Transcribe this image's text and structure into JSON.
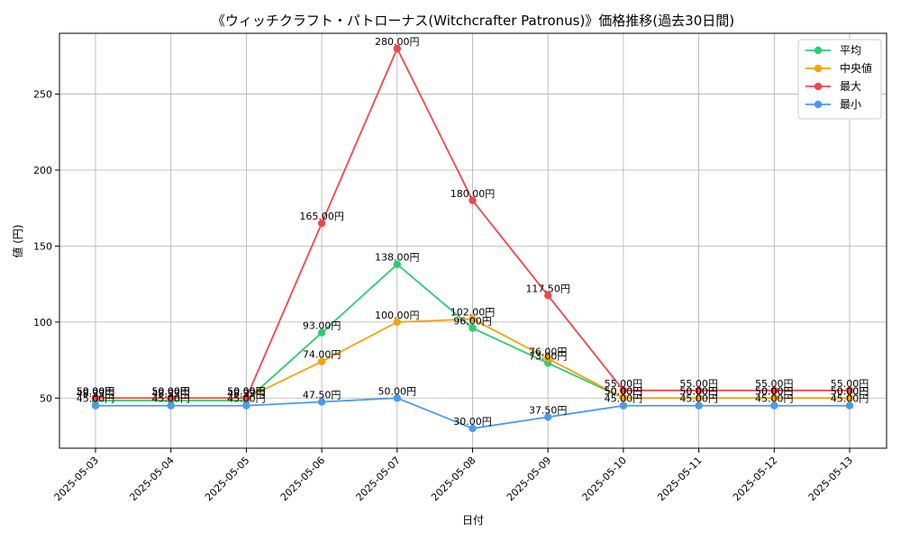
{
  "chart_data": {
    "type": "line",
    "title": "《ウィッチクラフト・パトローナス(Witchcrafter Patronus)》価格推移(過去30日間)",
    "xlabel": "日付",
    "ylabel": "値 (円)",
    "categories": [
      "2025-05-03",
      "2025-05-04",
      "2025-05-05",
      "2025-05-06",
      "2025-05-07",
      "2025-05-08",
      "2025-05-09",
      "2025-05-10",
      "2025-05-11",
      "2025-05-12",
      "2025-05-13"
    ],
    "ylim": [
      17,
      290
    ],
    "yticks": [
      50,
      100,
      150,
      200,
      250
    ],
    "grid": true,
    "legend_position": "top-right",
    "value_suffix": "円",
    "series": [
      {
        "name": "平均",
        "color": "#2ecc71",
        "values": [
          48.33,
          48.33,
          48.33,
          93.0,
          138.0,
          96.0,
          73.0,
          50.0,
          50.0,
          50.0,
          50.0
        ]
      },
      {
        "name": "中央値",
        "color": "#f5a30a",
        "values": [
          50.0,
          50.0,
          50.0,
          74.0,
          100.0,
          102.0,
          76.0,
          50.0,
          50.0,
          50.0,
          50.0
        ]
      },
      {
        "name": "最大",
        "color": "#f0474b",
        "values": [
          50.0,
          50.0,
          50.0,
          165.0,
          280.0,
          180.0,
          117.5,
          55.0,
          55.0,
          55.0,
          55.0
        ]
      },
      {
        "name": "最小",
        "color": "#4a9af0",
        "values": [
          45.0,
          45.0,
          45.0,
          47.5,
          50.0,
          30.0,
          37.5,
          45.0,
          45.0,
          45.0,
          45.0
        ]
      }
    ]
  }
}
